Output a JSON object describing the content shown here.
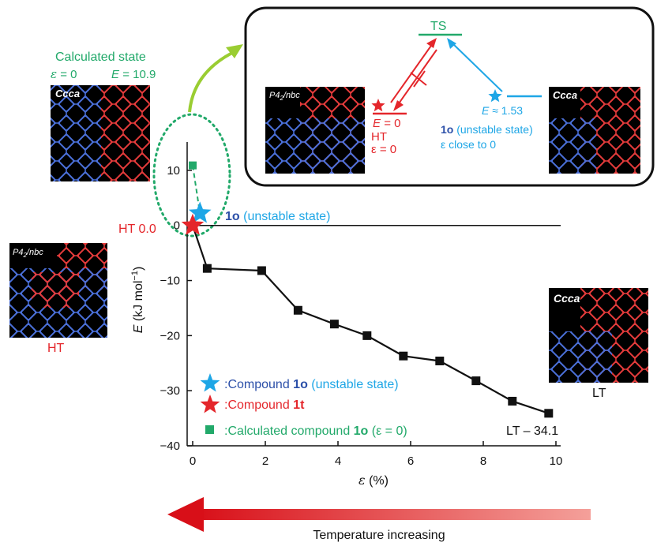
{
  "chart_data": {
    "type": "line",
    "xlabel_symbol": "ε",
    "xlabel_unit": "(%)",
    "ylabel_symbol": "E",
    "ylabel_unit": "(kJ mol",
    "ylabel_sup": "−1",
    "ylabel_close": ")",
    "xlim": [
      0,
      10
    ],
    "ylim": [
      -40,
      15
    ],
    "xticks": [
      0,
      2,
      4,
      6,
      8,
      10
    ],
    "yticks": [
      10,
      0,
      -10,
      -20,
      -30,
      -40
    ],
    "xtick_labels": [
      "0",
      "2",
      "4",
      "6",
      "8",
      "10"
    ],
    "ytick_labels": [
      "10",
      "0",
      "−10",
      "−20",
      "−30",
      "−40"
    ],
    "grid": false,
    "series": [
      {
        "name": "Compound 1t",
        "marker": "square",
        "color": "#111111",
        "x": [
          0,
          0.4,
          1.9,
          2.9,
          3.9,
          4.8,
          5.8,
          6.8,
          7.8,
          8.8,
          9.8
        ],
        "y": [
          0,
          -7.8,
          -8.2,
          -15.4,
          -17.9,
          -20.0,
          -23.7,
          -24.6,
          -28.2,
          -31.9,
          -34.1
        ]
      }
    ],
    "unstable_point": {
      "x": 0.2,
      "y": 2.2,
      "color": "#1ea6e6"
    },
    "ht_point": {
      "x": 0,
      "y": 0,
      "color": "#e4262b"
    },
    "calculated_point": {
      "x": 0,
      "y": 10.9,
      "color": "#22a96a"
    },
    "reference_line_y": 0
  },
  "annotations": {
    "calc_state_title": "Calculated state",
    "calc_eps_symbol": "ε",
    "calc_eps_value": "= 0",
    "calc_e_symbol": "E",
    "calc_e_value": "= 10.9",
    "ht_zero_label": "HT 0.0",
    "unstable_label_bold": "1o",
    "unstable_label_rest": " (unstable state)",
    "lt_value_label": "LT – 34.1",
    "ht_caption": "HT",
    "lt_caption": "LT",
    "temperature_label": "Temperature increasing"
  },
  "legend": [
    {
      "marker": "star",
      "color": "#1ea6e6",
      "prefix": ":Compound ",
      "bold": "1o",
      "suffix": " (unstable state)",
      "text_color": "#2b4fa8",
      "suffix_color": "#1ea6e6"
    },
    {
      "marker": "star",
      "color": "#e4262b",
      "prefix": ":Compound ",
      "bold": "1t",
      "suffix": "",
      "text_color": "#e4262b",
      "suffix_color": "#e4262b"
    },
    {
      "marker": "square",
      "color": "#22a96a",
      "prefix": ":Calculated compound ",
      "bold": "1o",
      "suffix": " (ε = 0)",
      "text_color": "#22a96a",
      "suffix_color": "#22a96a"
    }
  ],
  "structures": [
    {
      "id": "calc",
      "label": "Ccca"
    },
    {
      "id": "ht_inset",
      "label_main": "P4",
      "label_sub": "2",
      "label_rest": "/nbc"
    },
    {
      "id": "ts_right",
      "label": "Ccca"
    },
    {
      "id": "ht_left",
      "label_main": "P4",
      "label_sub": "2",
      "label_rest": "/nbc"
    },
    {
      "id": "lt_right",
      "label": "Ccca"
    }
  ],
  "inset": {
    "ts_label": "TS",
    "e_zero_symbol": "E",
    "e_zero_value": "= 0",
    "ht_label": "HT",
    "eps_zero": "ε = 0",
    "e_approx_symbol": "E",
    "e_approx_value": "≈ 1.53",
    "unstable_bold": "1o",
    "unstable_rest": " (unstable state)",
    "close_label": "ε close to 0",
    "red_color": "#e4262b",
    "blue_color": "#1ea6e6",
    "green_color": "#22a96a"
  }
}
